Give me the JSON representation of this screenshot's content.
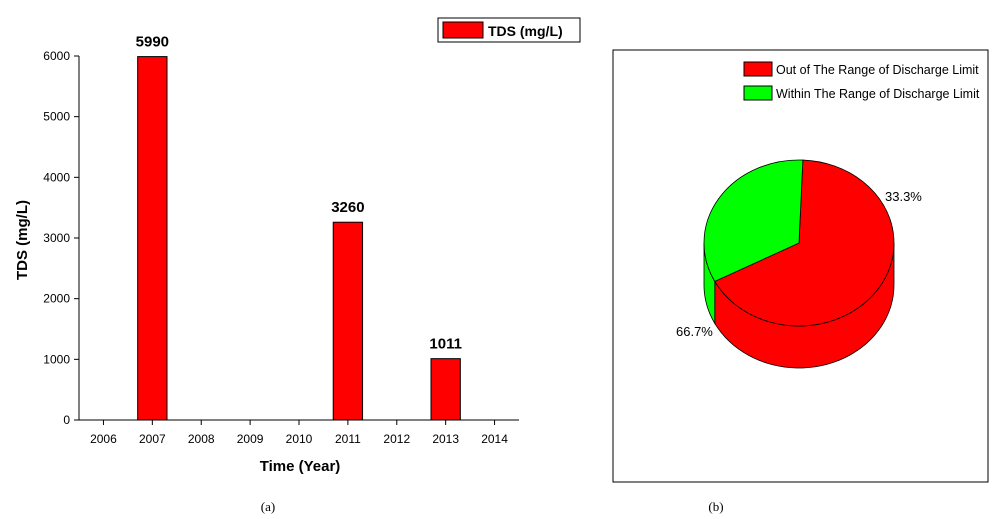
{
  "chart_data": [
    {
      "type": "bar",
      "panel_label": "(a)",
      "categories": [
        "2006",
        "2007",
        "2008",
        "2009",
        "2010",
        "2011",
        "2012",
        "2013",
        "2014"
      ],
      "series": [
        {
          "name": "TDS (mg/L)",
          "values": [
            0,
            5990,
            0,
            0,
            0,
            3260,
            0,
            1011,
            0
          ],
          "color": "#ff0000"
        }
      ],
      "data_labels": {
        "2007": "5990",
        "2011": "3260",
        "2013": "1011"
      },
      "xlabel": "Time (Year)",
      "ylabel": "TDS (mg/L)",
      "ylim": [
        0,
        6000
      ],
      "yticks": [
        0,
        1000,
        2000,
        3000,
        4000,
        5000,
        6000
      ],
      "grid": false,
      "legend_position": "top-right"
    },
    {
      "type": "pie",
      "style": "3d",
      "panel_label": "(b)",
      "slices": [
        {
          "name": "Out of The Range of Discharge Limit",
          "value": 66.7,
          "label": "66.7%",
          "color": "#ff0000"
        },
        {
          "name": "Within The Range of Discharge Limit",
          "value": 33.3,
          "label": "33.3%",
          "color": "#00ff00"
        }
      ],
      "legend_position": "top-right"
    }
  ]
}
